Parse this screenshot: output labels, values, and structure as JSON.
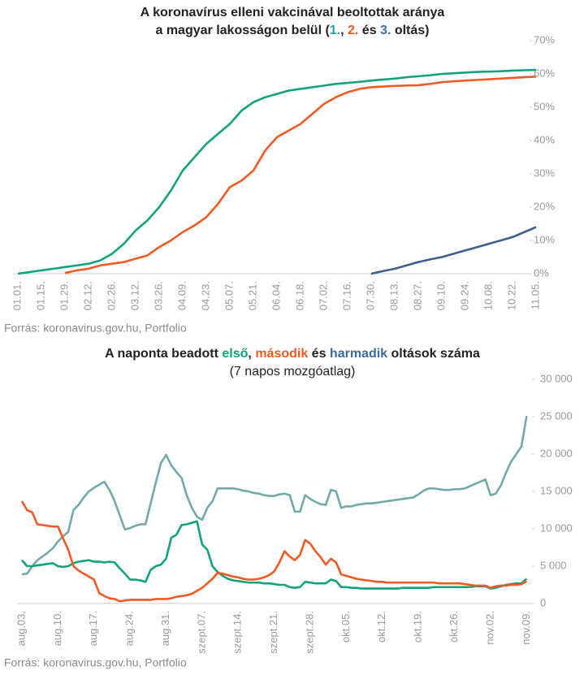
{
  "chart_data": [
    {
      "type": "line",
      "title": [
        [
          "A koronavírus elleni vakcinával beoltottak aránya"
        ],
        [
          "a magyar lakosságon belül (",
          {
            "text": "1.",
            "color": "#1fa3a8"
          },
          ", ",
          {
            "text": "2.",
            "color": "#f15a22"
          },
          " és ",
          {
            "text": "3.",
            "color": "#3b6fb0"
          },
          " oltás)"
        ]
      ],
      "source": "Forrás: koronavirus.gov.hu, Portfolio",
      "categories": [
        "01.01.",
        null,
        "01.15.",
        null,
        "01.29.",
        null,
        "02.12.",
        null,
        "02.26.",
        null,
        "03.12.",
        null,
        "03.26.",
        null,
        "04.09.",
        null,
        "04.23.",
        null,
        "05.07.",
        null,
        "05.21.",
        null,
        "06.04.",
        null,
        "06.18.",
        null,
        "07.02.",
        null,
        "07.16.",
        null,
        "07.30.",
        null,
        "08.13.",
        null,
        "08.27.",
        null,
        "09.10.",
        null,
        "09.24.",
        null,
        "10.08.",
        null,
        "10.22.",
        null,
        "11.05."
      ],
      "series": [
        {
          "color": "#12a37a",
          "values": [
            0,
            0.5,
            1,
            1.5,
            2,
            2.5,
            3,
            4,
            6,
            9,
            13,
            16,
            20,
            25,
            31,
            35,
            39,
            42,
            45,
            49,
            51.5,
            53,
            54,
            55,
            55.5,
            56,
            56.5,
            57,
            57.3,
            57.6,
            58,
            58.3,
            58.6,
            59,
            59.3,
            59.6,
            60,
            60.2,
            60.4,
            60.6,
            60.7,
            60.8,
            61,
            61.1,
            61.2
          ]
        },
        {
          "color": "#f15a22",
          "values": [
            null,
            null,
            null,
            null,
            0.2,
            1,
            1.5,
            2.5,
            3,
            3.5,
            4.5,
            5.5,
            8,
            10,
            12.5,
            14.5,
            17,
            21,
            26,
            28,
            31,
            37,
            41,
            43,
            45,
            48,
            51,
            53,
            54.5,
            55.5,
            56,
            56.2,
            56.4,
            56.5,
            56.6,
            57,
            57.5,
            57.8,
            58,
            58.2,
            58.4,
            58.6,
            58.8,
            59,
            59.2
          ]
        },
        {
          "color": "#3d5f8f",
          "values": [
            null,
            null,
            null,
            null,
            null,
            null,
            null,
            null,
            null,
            null,
            null,
            null,
            null,
            null,
            null,
            null,
            null,
            null,
            null,
            null,
            null,
            null,
            null,
            null,
            null,
            null,
            null,
            null,
            null,
            null,
            0,
            0.8,
            1.5,
            2.5,
            3.5,
            4.3,
            5,
            6,
            7,
            8,
            9,
            10,
            11,
            12.5,
            14
          ]
        }
      ],
      "ylim": [
        0,
        70
      ],
      "yticks": [
        {
          "value": 0,
          "label": "0%"
        },
        {
          "value": 10,
          "label": "10%"
        },
        {
          "value": 20,
          "label": "20%"
        },
        {
          "value": 30,
          "label": "30%"
        },
        {
          "value": 40,
          "label": "40%"
        },
        {
          "value": 50,
          "label": "50%"
        },
        {
          "value": 60,
          "label": "60%"
        },
        {
          "value": 70,
          "label": "70%"
        }
      ],
      "yaxis_side": "right",
      "grid": false
    },
    {
      "type": "line",
      "title": [
        [
          "A naponta beadott ",
          {
            "text": "első",
            "color": "#12a37a"
          },
          ", ",
          {
            "text": "második",
            "color": "#f15a22"
          },
          " és ",
          {
            "text": "harmadik",
            "color": "#3b6c9e"
          },
          " oltások száma"
        ]
      ],
      "subtitle": "(7 napos mozgóatlag)",
      "source": "Forrás: koronavirus.gov.hu, Portfolio",
      "categories": [
        "aug.03.",
        null,
        null,
        null,
        null,
        null,
        null,
        "aug.10.",
        null,
        null,
        null,
        null,
        null,
        null,
        "aug.17.",
        null,
        null,
        null,
        null,
        null,
        null,
        "aug.24.",
        null,
        null,
        null,
        null,
        null,
        null,
        "aug.31.",
        null,
        null,
        null,
        null,
        null,
        null,
        "szept.07.",
        null,
        null,
        null,
        null,
        null,
        null,
        "szept.14.",
        null,
        null,
        null,
        null,
        null,
        null,
        "szept.21.",
        null,
        null,
        null,
        null,
        null,
        null,
        "szept.28.",
        null,
        null,
        null,
        null,
        null,
        null,
        "okt.05.",
        null,
        null,
        null,
        null,
        null,
        null,
        "okt.12.",
        null,
        null,
        null,
        null,
        null,
        null,
        "okt.19.",
        null,
        null,
        null,
        null,
        null,
        null,
        "okt.26.",
        null,
        null,
        null,
        null,
        null,
        null,
        "nov.02.",
        null,
        null,
        null,
        null,
        null,
        null,
        "nov.09."
      ],
      "series": [
        {
          "color": "#72aaa9",
          "values": [
            3900,
            4000,
            5000,
            5800,
            6300,
            6800,
            7400,
            8300,
            9000,
            9600,
            12500,
            13200,
            14200,
            15000,
            15500,
            15900,
            16300,
            15200,
            13700,
            11800,
            9900,
            10100,
            10400,
            10600,
            10600,
            13400,
            16200,
            18800,
            19900,
            18500,
            17600,
            16800,
            14500,
            12800,
            11600,
            11200,
            12800,
            13700,
            15400,
            15400,
            15400,
            15400,
            15300,
            15100,
            15000,
            14800,
            14700,
            14500,
            14400,
            14400,
            14600,
            14700,
            14500,
            12300,
            12300,
            14500,
            14000,
            13600,
            13300,
            13200,
            15200,
            15000,
            12800,
            13000,
            13000,
            13200,
            13300,
            13400,
            13400,
            13500,
            13600,
            13700,
            13800,
            13900,
            14000,
            14100,
            14200,
            14600,
            15100,
            15400,
            15400,
            15300,
            15200,
            15200,
            15300,
            15300,
            15400,
            15700,
            16000,
            16300,
            16600,
            14500,
            14700,
            15800,
            17500,
            19000,
            20000,
            21000,
            25100
          ]
        },
        {
          "color": "#12a37a",
          "values": [
            5800,
            5000,
            5000,
            5100,
            5200,
            5300,
            5400,
            5000,
            4900,
            5000,
            5400,
            5600,
            5700,
            5800,
            5600,
            5600,
            5500,
            5600,
            5500,
            4700,
            4000,
            3200,
            3200,
            3100,
            2900,
            4500,
            5000,
            5200,
            6000,
            8800,
            9200,
            10500,
            10600,
            10800,
            11000,
            7900,
            7200,
            5000,
            4200,
            3700,
            3300,
            3100,
            3000,
            2900,
            2800,
            2800,
            2800,
            2700,
            2700,
            2600,
            2500,
            2500,
            2200,
            2100,
            2200,
            2900,
            2800,
            2700,
            2700,
            2700,
            3200,
            3000,
            2200,
            2200,
            2100,
            2100,
            2000,
            2000,
            2000,
            2000,
            2000,
            2000,
            2000,
            2000,
            2100,
            2100,
            2100,
            2100,
            2100,
            2100,
            2200,
            2200,
            2200,
            2200,
            2200,
            2200,
            2200,
            2200,
            2300,
            2300,
            2300,
            2000,
            2100,
            2300,
            2500,
            2600,
            2700,
            2700,
            3300
          ]
        },
        {
          "color": "#f15a22",
          "values": [
            13700,
            12500,
            12200,
            10600,
            10500,
            10400,
            10300,
            10300,
            8700,
            7200,
            5000,
            4400,
            4000,
            3600,
            3200,
            1400,
            1000,
            700,
            600,
            300,
            400,
            500,
            500,
            500,
            500,
            500,
            600,
            600,
            600,
            700,
            900,
            1000,
            1100,
            1300,
            1700,
            2100,
            2700,
            3300,
            4100,
            4000,
            3800,
            3600,
            3500,
            3300,
            3200,
            3200,
            3300,
            3500,
            3800,
            4300,
            5500,
            7000,
            6300,
            5800,
            6500,
            8500,
            8000,
            7000,
            6200,
            5200,
            6000,
            5500,
            3900,
            3700,
            3500,
            3300,
            3200,
            3100,
            3000,
            2900,
            2900,
            2800,
            2800,
            2800,
            2800,
            2800,
            2800,
            2800,
            2800,
            2800,
            2800,
            2700,
            2700,
            2700,
            2700,
            2700,
            2600,
            2500,
            2400,
            2400,
            2400,
            2100,
            2300,
            2400,
            2400,
            2500,
            2500,
            2600,
            3000
          ]
        }
      ],
      "ylim": [
        0,
        30000
      ],
      "yticks": [
        {
          "value": 0,
          "label": "0"
        },
        {
          "value": 5000,
          "label": "5 000"
        },
        {
          "value": 10000,
          "label": "10 000"
        },
        {
          "value": 15000,
          "label": "15 000"
        },
        {
          "value": 20000,
          "label": "20 000"
        },
        {
          "value": 25000,
          "label": "25 000"
        },
        {
          "value": 30000,
          "label": "30 000"
        }
      ],
      "yaxis_side": "right",
      "grid": false
    }
  ]
}
